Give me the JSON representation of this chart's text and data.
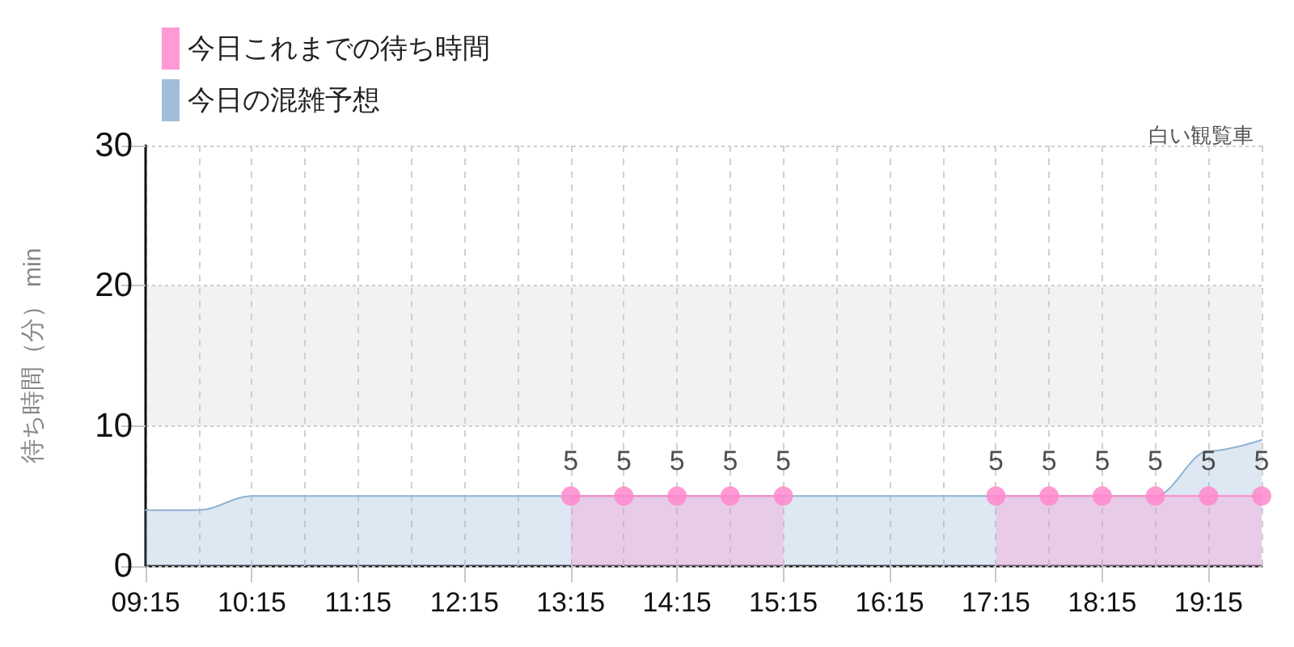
{
  "chart_data": {
    "type": "area",
    "title": "白い観覧車",
    "ylabel": "待ち時間（分） min",
    "x": [
      9.25,
      9.75,
      10.25,
      10.75,
      11.25,
      11.75,
      12.25,
      12.75,
      13.25,
      13.75,
      14.25,
      14.75,
      15.25,
      15.75,
      16.25,
      16.75,
      17.25,
      17.75,
      18.25,
      18.75,
      19.25,
      19.75
    ],
    "series": [
      {
        "name": "今日これまでの待ち時間",
        "color": "#ff88cc",
        "marker": "circle",
        "data_labels": true,
        "values": [
          null,
          null,
          null,
          null,
          null,
          null,
          null,
          null,
          5,
          5,
          5,
          5,
          5,
          null,
          null,
          null,
          5,
          5,
          5,
          5,
          5,
          5
        ]
      },
      {
        "name": "今日の混雑予想",
        "color": "#8fb3d3",
        "marker": "none",
        "values": [
          4,
          4,
          5,
          5,
          5,
          5,
          5,
          5,
          5,
          5,
          5,
          5,
          5,
          5,
          5,
          5,
          5,
          5,
          5,
          5,
          8.2,
          9
        ]
      }
    ],
    "xlim": [
      9.25,
      19.75
    ],
    "xticks": [
      {
        "value": 9.25,
        "label": "09:15"
      },
      {
        "value": 9.75,
        "label": null
      },
      {
        "value": 10.25,
        "label": "10:15"
      },
      {
        "value": 10.75,
        "label": null
      },
      {
        "value": 11.25,
        "label": "11:15"
      },
      {
        "value": 11.75,
        "label": null
      },
      {
        "value": 12.25,
        "label": "12:15"
      },
      {
        "value": 12.75,
        "label": null
      },
      {
        "value": 13.25,
        "label": "13:15"
      },
      {
        "value": 13.75,
        "label": null
      },
      {
        "value": 14.25,
        "label": "14:15"
      },
      {
        "value": 14.75,
        "label": null
      },
      {
        "value": 15.25,
        "label": "15:15"
      },
      {
        "value": 15.75,
        "label": null
      },
      {
        "value": 16.25,
        "label": "16:15"
      },
      {
        "value": 16.75,
        "label": null
      },
      {
        "value": 17.25,
        "label": "17:15"
      },
      {
        "value": 17.75,
        "label": null
      },
      {
        "value": 18.25,
        "label": "18:15"
      },
      {
        "value": 18.75,
        "label": null
      },
      {
        "value": 19.25,
        "label": "19:15"
      },
      {
        "value": 19.75,
        "label": null
      }
    ],
    "ylim": [
      0,
      30
    ],
    "yticks": [
      0,
      10,
      20,
      30
    ],
    "bands": [
      {
        "axis": "y",
        "from": 10,
        "to": 20,
        "color": "#f2f2f2"
      }
    ],
    "grid": true,
    "legend": "top left"
  }
}
